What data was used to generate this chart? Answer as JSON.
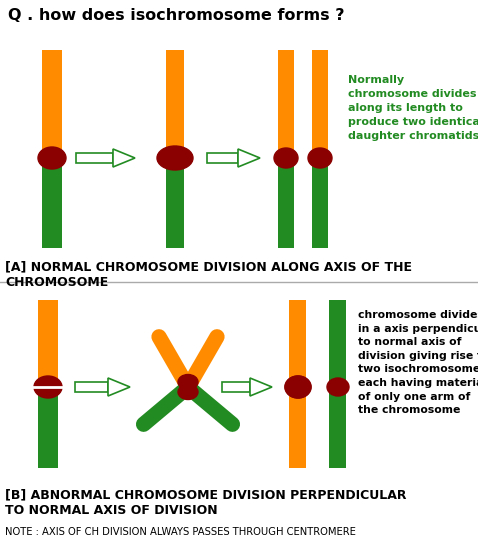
{
  "title": "Q . how does isochromosome forms ?",
  "title_fontsize": 11.5,
  "title_color": "#000000",
  "bg_color": "#ffffff",
  "orange_color": "#FF8C00",
  "green_color": "#228B22",
  "centromere_color": "#8B0000",
  "arrow_edge_color": "#228B22",
  "text_color_green": "#228B22",
  "text_color_black": "#000000",
  "label_a": "[A] NORMAL CHROMOSOME DIVISION ALONG AXIS OF THE\nCHROMOSOME",
  "label_b": "[B] ABNORMAL CHROMOSOME DIVISION PERPENDICULAR\nTO NORMAL AXIS OF DIVISION",
  "note": "NOTE : AXIS OF CH DIVISION ALWAYS PASSES THROUGH CENTROMERE",
  "normal_text": "Normally\nchromosome divides\nalong its length to\nproduce two identical\ndaughter chromatids",
  "abnormal_text": "chromosome divides\nin a axis perpendicular\nto normal axis of\ndivision giving rise to\ntwo isochromosomes\neach having materials\nof only one arm of\nthe chromosome"
}
